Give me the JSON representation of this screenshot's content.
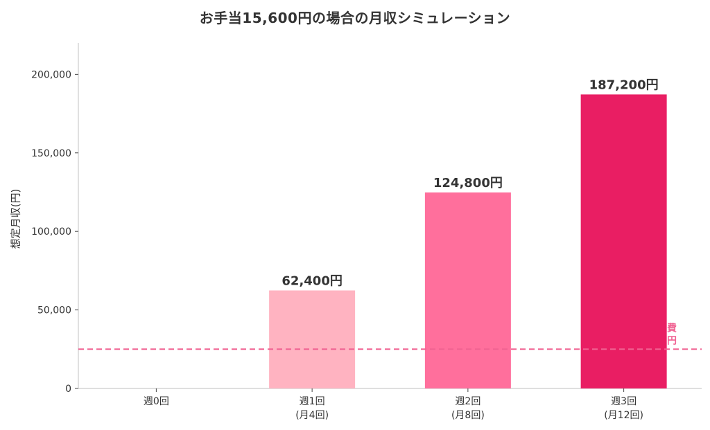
{
  "chart_data": {
    "type": "bar",
    "title": "お手当15,600円の場合の月収シミュレーション",
    "xlabel": "",
    "ylabel": "想定月収(円)",
    "categories": [
      [
        "週0回"
      ],
      [
        "週1回",
        "(月4回)"
      ],
      [
        "週2回",
        "(月8回)"
      ],
      [
        "週3回",
        "(月12回)"
      ]
    ],
    "values": [
      0,
      62400,
      124800,
      187200
    ],
    "data_labels": [
      "",
      "62,400円",
      "124,800円",
      "187,200円"
    ],
    "bar_colors": [
      "#ffb3c1",
      "#ffb3c1",
      "#ff6f9c",
      "#e91e63"
    ],
    "ylim": [
      0,
      220000
    ],
    "yticks": [
      0,
      50000,
      100000,
      150000,
      200000
    ],
    "ytick_labels": [
      "0",
      "50,000",
      "100,000",
      "150,000",
      "200,000"
    ],
    "reference_line": {
      "value": 25000,
      "color": "#f06292",
      "style": "dashed",
      "label_lines": [
        "費",
        "円"
      ]
    },
    "grid": false,
    "legend": "none"
  }
}
